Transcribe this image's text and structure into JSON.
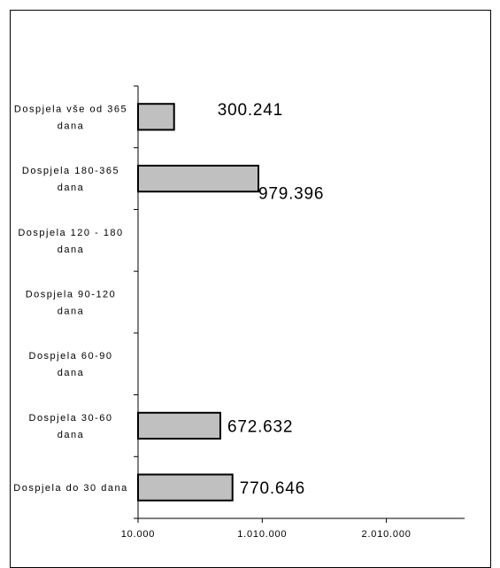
{
  "chart_data": {
    "type": "bar",
    "orientation": "horizontal",
    "categories": [
      [
        "Dospjela vše od 365",
        "dana"
      ],
      [
        "Dospjela 180-365",
        "dana"
      ],
      [
        "Dospjela 120 - 180",
        "dana"
      ],
      [
        "Dospjela 90-120",
        "dana"
      ],
      [
        "Dospjela 60-90",
        "dana"
      ],
      [
        "Dospjela 30-60",
        "dana"
      ],
      [
        "Dospjela do 30 dana"
      ]
    ],
    "values": [
      300241,
      979396,
      null,
      null,
      null,
      672632,
      770646
    ],
    "data_labels": [
      "300.241",
      "979.396",
      "",
      "",
      "",
      "672.632",
      "770.646"
    ],
    "x_ticks": [
      {
        "value": 10000,
        "label": "10.000"
      },
      {
        "value": 1010000,
        "label": "1.010.000"
      },
      {
        "value": 2010000,
        "label": "2.010.000"
      }
    ],
    "xlim": [
      10000,
      2640000
    ],
    "grid": false,
    "legend": "none",
    "bar_color": "#c0c0c0",
    "bar_border_color": "#000000"
  }
}
